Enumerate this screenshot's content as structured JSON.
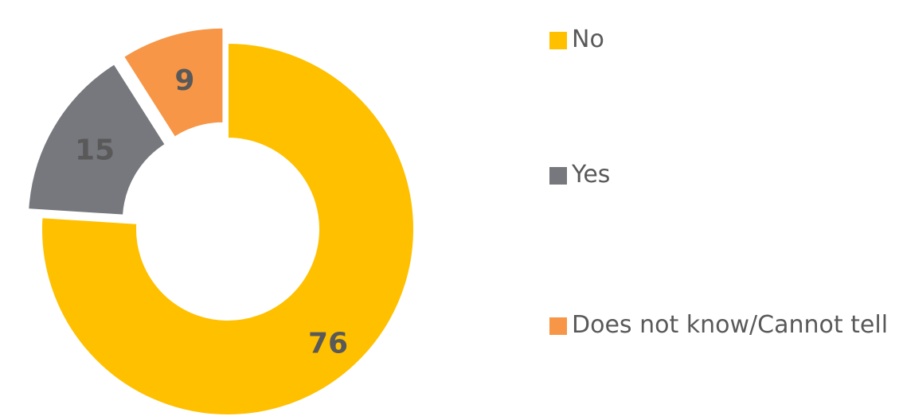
{
  "chart_data": {
    "type": "pie",
    "variant": "donut",
    "exploded": true,
    "categories": [
      "No",
      "Yes",
      "Does not know/Cannot tell"
    ],
    "values": [
      76,
      15,
      9
    ],
    "colors": [
      "#FFC000",
      "#76787D",
      "#F79646"
    ],
    "data_labels": [
      "76",
      "15",
      "9"
    ],
    "legend_position": "right",
    "title": ""
  },
  "legend": {
    "items": [
      {
        "label": "No",
        "color": "#FFC000"
      },
      {
        "label": "Yes",
        "color": "#76787D"
      },
      {
        "label": "Does not know/Cannot tell",
        "color": "#F79646"
      }
    ]
  }
}
